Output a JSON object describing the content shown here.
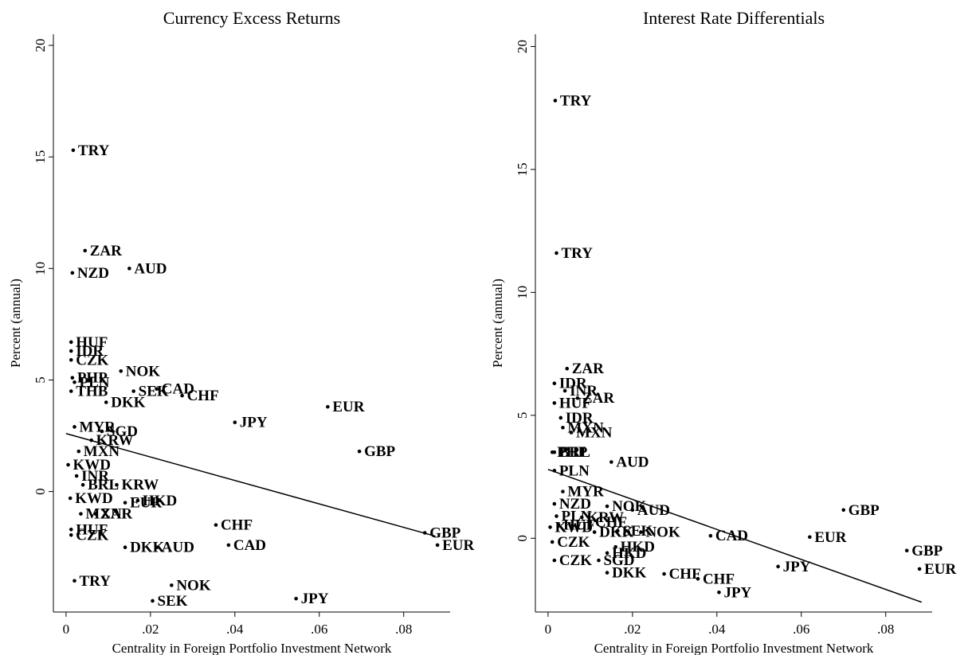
{
  "chart_data": [
    {
      "type": "scatter",
      "title": "Currency Excess Returns",
      "xlabel": "Centrality in Foreign Portfolio Investment Network",
      "ylabel": "Percent (annual)",
      "xlim": [
        -0.003,
        0.091
      ],
      "ylim": [
        -5.4,
        20.5
      ],
      "x_ticks": [
        0,
        0.02,
        0.04,
        0.06,
        0.08
      ],
      "x_tick_labels": [
        "0",
        ".02",
        ".04",
        ".06",
        ".08"
      ],
      "y_ticks": [
        0,
        5,
        10,
        15,
        20
      ],
      "y_tick_labels": [
        "0",
        "5",
        "10",
        "15",
        "20"
      ],
      "fit_line": {
        "x0": 0,
        "y0": 2.6,
        "x1": 0.0875,
        "y1": -2.0
      },
      "points": [
        {
          "x": 0.0017,
          "y": 15.3,
          "label": "TRY"
        },
        {
          "x": 0.0045,
          "y": 10.8,
          "label": "ZAR"
        },
        {
          "x": 0.0015,
          "y": 9.8,
          "label": "NZD"
        },
        {
          "x": 0.015,
          "y": 10.0,
          "label": "AUD"
        },
        {
          "x": 0.0012,
          "y": 6.7,
          "label": "HUF"
        },
        {
          "x": 0.0012,
          "y": 6.3,
          "label": "IDR"
        },
        {
          "x": 0.0012,
          "y": 5.9,
          "label": "CZK"
        },
        {
          "x": 0.0015,
          "y": 5.1,
          "label": "PHP"
        },
        {
          "x": 0.002,
          "y": 4.9,
          "label": "PLN"
        },
        {
          "x": 0.0012,
          "y": 4.5,
          "label": "THB"
        },
        {
          "x": 0.013,
          "y": 5.4,
          "label": "NOK"
        },
        {
          "x": 0.0215,
          "y": 4.6,
          "label": "CAD"
        },
        {
          "x": 0.016,
          "y": 4.5,
          "label": "SEK"
        },
        {
          "x": 0.0275,
          "y": 4.3,
          "label": "CHF"
        },
        {
          "x": 0.0095,
          "y": 4.0,
          "label": "DKK"
        },
        {
          "x": 0.062,
          "y": 3.8,
          "label": "EUR"
        },
        {
          "x": 0.04,
          "y": 3.1,
          "label": "JPY"
        },
        {
          "x": 0.002,
          "y": 2.9,
          "label": "MYR"
        },
        {
          "x": 0.0085,
          "y": 2.7,
          "label": "SGD"
        },
        {
          "x": 0.006,
          "y": 2.3,
          "label": "KRW"
        },
        {
          "x": 0.003,
          "y": 1.8,
          "label": "MXN"
        },
        {
          "x": 0.0695,
          "y": 1.8,
          "label": "GBP"
        },
        {
          "x": 0.0005,
          "y": 1.2,
          "label": "KWD"
        },
        {
          "x": 0.0025,
          "y": 0.7,
          "label": "INR"
        },
        {
          "x": 0.004,
          "y": 0.3,
          "label": "BRL"
        },
        {
          "x": 0.012,
          "y": 0.3,
          "label": "KRW"
        },
        {
          "x": 0.001,
          "y": -0.3,
          "label": "KWD"
        },
        {
          "x": 0.014,
          "y": -0.5,
          "label": "EUR"
        },
        {
          "x": 0.017,
          "y": -0.4,
          "label": "HKD"
        },
        {
          "x": 0.0035,
          "y": -1.0,
          "label": "MXN"
        },
        {
          "x": 0.007,
          "y": -1.0,
          "label": "ZAR"
        },
        {
          "x": 0.0012,
          "y": -1.7,
          "label": "HUF"
        },
        {
          "x": 0.0012,
          "y": -1.95,
          "label": "CZK"
        },
        {
          "x": 0.0355,
          "y": -1.5,
          "label": "CHF"
        },
        {
          "x": 0.014,
          "y": -2.5,
          "label": "DKK"
        },
        {
          "x": 0.0215,
          "y": -2.5,
          "label": "AUD"
        },
        {
          "x": 0.0385,
          "y": -2.4,
          "label": "CAD"
        },
        {
          "x": 0.085,
          "y": -1.85,
          "label": "GBP"
        },
        {
          "x": 0.088,
          "y": -2.4,
          "label": "EUR"
        },
        {
          "x": 0.002,
          "y": -4.0,
          "label": "TRY"
        },
        {
          "x": 0.025,
          "y": -4.2,
          "label": "NOK"
        },
        {
          "x": 0.0205,
          "y": -4.9,
          "label": "SEK"
        },
        {
          "x": 0.0545,
          "y": -4.8,
          "label": "JPY"
        }
      ]
    },
    {
      "type": "scatter",
      "title": "Interest Rate Differentials",
      "xlabel": "Centrality in Foreign Portfolio Investment Network",
      "ylabel": "Percent (annual)",
      "xlim": [
        -0.003,
        0.091
      ],
      "ylim": [
        -3.0,
        20.5
      ],
      "x_ticks": [
        0,
        0.02,
        0.04,
        0.06,
        0.08
      ],
      "x_tick_labels": [
        "0",
        ".02",
        ".04",
        ".06",
        ".08"
      ],
      "y_ticks": [
        0,
        5,
        10,
        15,
        20
      ],
      "y_tick_labels": [
        "0",
        "5",
        "10",
        "15",
        "20"
      ],
      "fit_line": {
        "x0": 0,
        "y0": 2.8,
        "x1": 0.0885,
        "y1": -2.6
      },
      "points": [
        {
          "x": 0.0017,
          "y": 17.8,
          "label": "TRY"
        },
        {
          "x": 0.002,
          "y": 11.6,
          "label": "TRY"
        },
        {
          "x": 0.0045,
          "y": 6.9,
          "label": "ZAR"
        },
        {
          "x": 0.0015,
          "y": 6.3,
          "label": "IDR"
        },
        {
          "x": 0.004,
          "y": 6.0,
          "label": "INR"
        },
        {
          "x": 0.007,
          "y": 5.7,
          "label": "ZAR"
        },
        {
          "x": 0.0015,
          "y": 5.5,
          "label": "HUF"
        },
        {
          "x": 0.003,
          "y": 4.9,
          "label": "IDR"
        },
        {
          "x": 0.0035,
          "y": 4.5,
          "label": "MXN"
        },
        {
          "x": 0.0055,
          "y": 4.3,
          "label": "MXN"
        },
        {
          "x": 0.001,
          "y": 3.5,
          "label": "PHP"
        },
        {
          "x": 0.0015,
          "y": 3.5,
          "label": "BRL"
        },
        {
          "x": 0.015,
          "y": 3.1,
          "label": "AUD"
        },
        {
          "x": 0.0015,
          "y": 2.75,
          "label": "PLN"
        },
        {
          "x": 0.0035,
          "y": 1.9,
          "label": "MYR"
        },
        {
          "x": 0.0015,
          "y": 1.4,
          "label": "NZD"
        },
        {
          "x": 0.014,
          "y": 1.3,
          "label": "NOK"
        },
        {
          "x": 0.02,
          "y": 1.15,
          "label": "AUD"
        },
        {
          "x": 0.07,
          "y": 1.15,
          "label": "GBP"
        },
        {
          "x": 0.002,
          "y": 0.9,
          "label": "PLN"
        },
        {
          "x": 0.008,
          "y": 0.85,
          "label": "KRW"
        },
        {
          "x": 0.0025,
          "y": 0.55,
          "label": "HUF"
        },
        {
          "x": 0.01,
          "y": 0.65,
          "label": "CHF"
        },
        {
          "x": 0.0005,
          "y": 0.45,
          "label": "KWD"
        },
        {
          "x": 0.011,
          "y": 0.25,
          "label": "DKK"
        },
        {
          "x": 0.0165,
          "y": 0.3,
          "label": "SEK"
        },
        {
          "x": 0.022,
          "y": 0.25,
          "label": "NOK"
        },
        {
          "x": 0.0385,
          "y": 0.1,
          "label": "CAD"
        },
        {
          "x": 0.062,
          "y": 0.05,
          "label": "EUR"
        },
        {
          "x": 0.001,
          "y": -0.15,
          "label": "CZK"
        },
        {
          "x": 0.016,
          "y": -0.35,
          "label": "HKD"
        },
        {
          "x": 0.014,
          "y": -0.6,
          "label": "HKD"
        },
        {
          "x": 0.0015,
          "y": -0.9,
          "label": "CZK"
        },
        {
          "x": 0.012,
          "y": -0.9,
          "label": "SGD"
        },
        {
          "x": 0.014,
          "y": -1.4,
          "label": "DKK"
        },
        {
          "x": 0.0275,
          "y": -1.45,
          "label": "CHF"
        },
        {
          "x": 0.0355,
          "y": -1.65,
          "label": "CHF"
        },
        {
          "x": 0.0405,
          "y": -2.2,
          "label": "JPY"
        },
        {
          "x": 0.0545,
          "y": -1.15,
          "label": "JPY"
        },
        {
          "x": 0.085,
          "y": -0.5,
          "label": "GBP"
        },
        {
          "x": 0.088,
          "y": -1.25,
          "label": "EUR"
        }
      ]
    }
  ]
}
